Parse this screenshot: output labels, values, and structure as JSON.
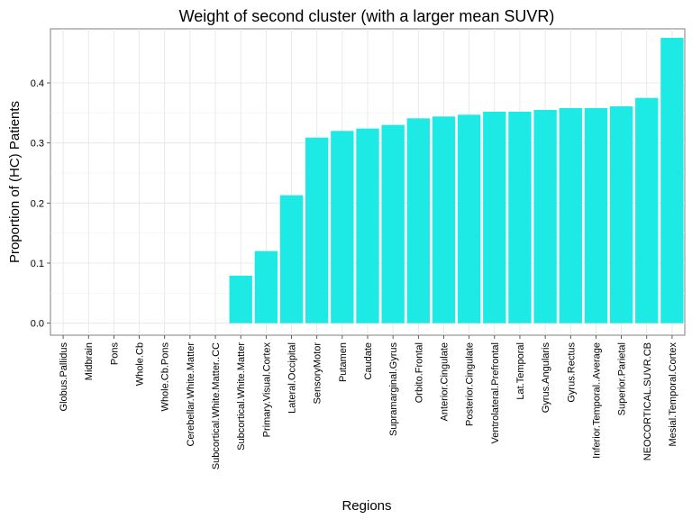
{
  "chart_data": {
    "type": "bar",
    "title": "Weight of second cluster (with a larger mean SUVR)",
    "xlabel": "Regions",
    "ylabel": "Proportion of (HC) Patients",
    "ylim": [
      -0.02,
      0.49
    ],
    "yticks": [
      0.0,
      0.1,
      0.2,
      0.3,
      0.4
    ],
    "ytick_labels": [
      "0.0",
      "0.1",
      "0.2",
      "0.3",
      "0.4"
    ],
    "grid": true,
    "bar_color": "#1de9e5",
    "categories": [
      "Globus.Pallidus",
      "Midbrain",
      "Pons",
      "Whole.Cb",
      "Whole.Cb.Pons",
      "Cerebellar.White.Matter",
      "Subcortical.White.Matter..CC",
      "Subcortical.White.Matter",
      "Primary.Visual.Cortex",
      "Lateral.Occipital",
      "SensoryMotor",
      "Putamen",
      "Caudate",
      "Supramarginal.Gyrus",
      "Orbito.Frontal",
      "Anterior.Cingulate",
      "Posterior.Cingulate",
      "Ventrolateral.Prefrontal",
      "Lat.Temporal",
      "Gyrus.Angularis",
      "Gyrus.Rectus",
      "Inferior.Temporal..Average",
      "Superior.Parietal",
      "NEOCORTICAL.SUVR.CB",
      "Mesial.Temporal.Cortex"
    ],
    "values": [
      0,
      0,
      0,
      0,
      0,
      0,
      0,
      0.079,
      0.12,
      0.213,
      0.309,
      0.32,
      0.324,
      0.33,
      0.341,
      0.344,
      0.347,
      0.352,
      0.352,
      0.355,
      0.358,
      0.358,
      0.361,
      0.375,
      0.475
    ]
  }
}
